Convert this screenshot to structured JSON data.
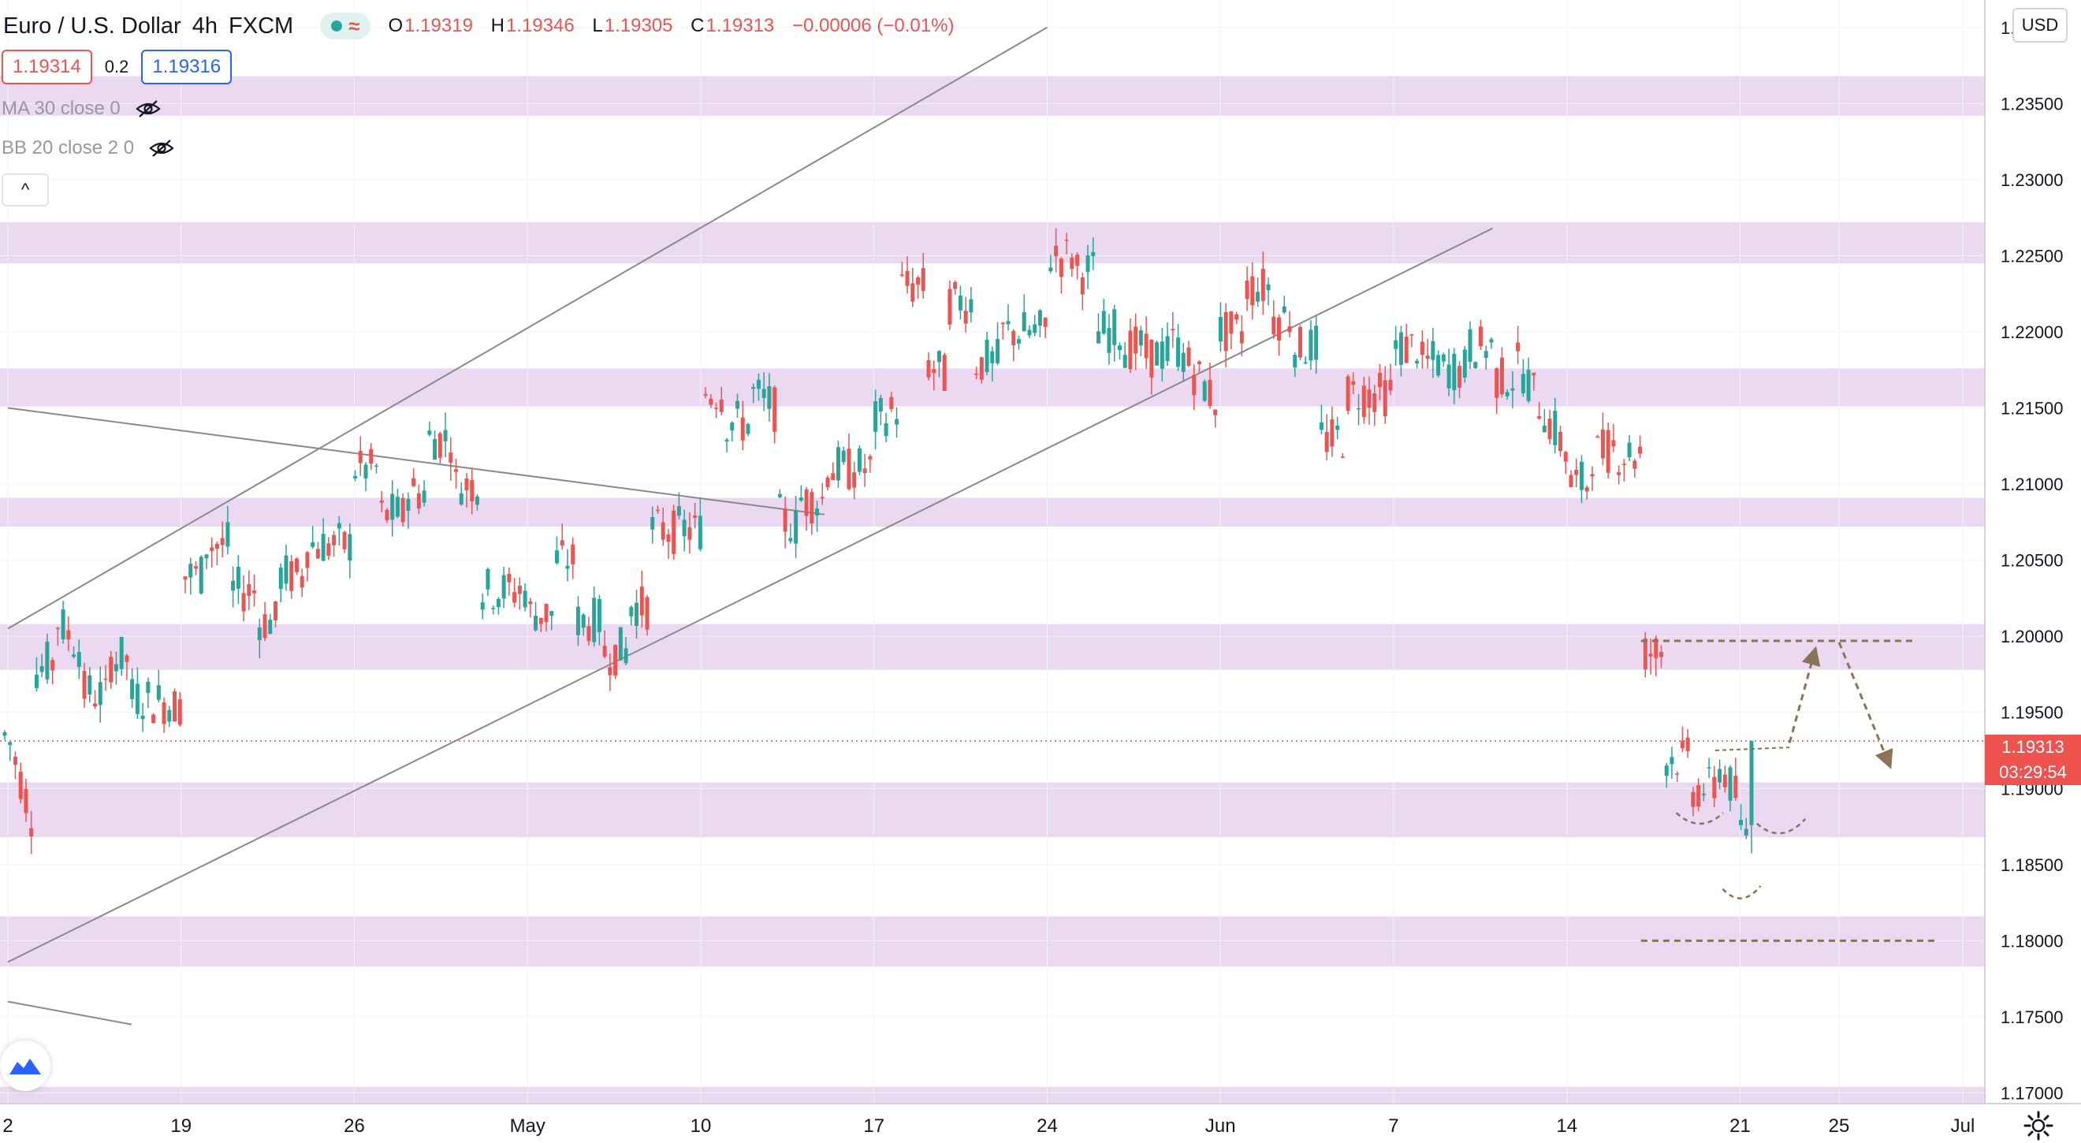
{
  "header": {
    "symbol": "Euro / U.S. Dollar",
    "interval": "4h",
    "exchange": "FXCM",
    "approx_icon": "≈",
    "ohlc": {
      "o_label": "O",
      "o": "1.19319",
      "h_label": "H",
      "h": "1.19346",
      "l_label": "L",
      "l": "1.19305",
      "c_label": "C",
      "c": "1.19313",
      "change": "−0.00006 (−0.01%)"
    }
  },
  "trade": {
    "sell_price": "1.19314",
    "spread": "0.2",
    "buy_price": "1.19316"
  },
  "indicators": [
    {
      "label": "MA 30 close 0",
      "icon": "eye-hidden-icon"
    },
    {
      "label": "BB 20 close 2 0",
      "icon": "eye-hidden-icon"
    }
  ],
  "collapse_icon": "^",
  "currency": "USD",
  "last_price": "1.19313",
  "countdown": "03:29:54",
  "colors": {
    "up": "#26a69a",
    "down": "#ef5350",
    "zone": "#e8d1ee",
    "trendline": "#8a8a8a",
    "annotation": "#8b7355"
  },
  "chart_data": {
    "type": "candlestick",
    "ylim": [
      1.1693,
      1.2418
    ],
    "y_ticks": [
      1.24,
      1.235,
      1.23,
      1.225,
      1.22,
      1.215,
      1.21,
      1.205,
      1.2,
      1.195,
      1.19,
      1.185,
      1.18,
      1.175,
      1.17
    ],
    "y_tick_labels": [
      "1.24000",
      "1.23500",
      "1.23000",
      "1.22500",
      "1.22000",
      "1.21500",
      "1.21000",
      "1.20500",
      "1.20000",
      "1.19500",
      "1.19000",
      "1.18500",
      "1.18000",
      "1.17500",
      "1.17000"
    ],
    "x_labels": [
      {
        "text": "2",
        "date": "2021-04-12"
      },
      {
        "text": "19",
        "date": "2021-04-19"
      },
      {
        "text": "26",
        "date": "2021-04-26"
      },
      {
        "text": "May",
        "date": "2021-05-03"
      },
      {
        "text": "10",
        "date": "2021-05-10"
      },
      {
        "text": "17",
        "date": "2021-05-17"
      },
      {
        "text": "24",
        "date": "2021-05-24"
      },
      {
        "text": "Jun",
        "date": "2021-05-31"
      },
      {
        "text": "7",
        "date": "2021-06-07"
      },
      {
        "text": "14",
        "date": "2021-06-14"
      },
      {
        "text": "21",
        "date": "2021-06-21"
      },
      {
        "text": "25",
        "date": "2021-06-25"
      },
      {
        "text": "Jul",
        "date": "2021-06-30"
      }
    ],
    "zones": [
      [
        1.2342,
        1.2368
      ],
      [
        1.2245,
        1.2272
      ],
      [
        1.2151,
        1.2176
      ],
      [
        1.2072,
        1.2091
      ],
      [
        1.1978,
        1.2008
      ],
      [
        1.1868,
        1.1904
      ],
      [
        1.1783,
        1.1816
      ],
      [
        1.1693,
        1.1704
      ]
    ],
    "trendlines": [
      {
        "from": [
          "2021-04-12",
          1.2005
        ],
        "to": [
          "2021-05-24",
          1.24
        ]
      },
      {
        "from": [
          "2021-04-12",
          1.1786
        ],
        "to": [
          "2021-06-11",
          1.2268
        ]
      },
      {
        "from": [
          "2021-04-12",
          1.215
        ],
        "to": [
          "2021-05-15",
          1.208
        ]
      },
      {
        "from": [
          "2021-04-12",
          1.176
        ],
        "to": [
          "2021-04-17",
          1.1745
        ]
      }
    ],
    "last_price_line": 1.19313,
    "annotations": {
      "resistance_line": {
        "from": [
          "2021-06-17",
          1.1997
        ],
        "to": [
          "2021-06-28",
          1.1997
        ]
      },
      "support_line": {
        "from": [
          "2021-06-17",
          1.18
        ],
        "to": [
          "2021-06-29",
          1.18
        ]
      },
      "neckline": {
        "from": [
          "2021-06-20",
          1.1925
        ],
        "to": [
          "2021-06-23",
          1.1927
        ]
      },
      "path": [
        [
          "2021-06-23",
          1.193
        ],
        [
          "2021-06-24",
          1.1989
        ],
        [
          "2021-06-25",
          1.1996
        ],
        [
          "2021-06-27",
          1.1917
        ]
      ],
      "pattern_arcs": [
        [
          [
            "2021-06-19",
            1.1884
          ],
          [
            "2021-06-19",
            1.1877
          ],
          [
            "2021-06-20",
            1.1884
          ]
        ],
        [
          [
            "2021-06-21",
            1.1834
          ],
          [
            "2021-06-21",
            1.1828
          ],
          [
            "2021-06-21",
            1.1836
          ]
        ],
        [
          [
            "2021-06-22",
            1.1877
          ],
          [
            "2021-06-22",
            1.187
          ],
          [
            "2021-06-23",
            1.188
          ]
        ]
      ]
    },
    "ohlc_points": [
      [
        "2021-04-12",
        1.19,
        1.1935
      ],
      [
        "2021-04-13",
        1.188,
        1.1975
      ],
      [
        "2021-04-14",
        1.1985,
        1.201
      ],
      [
        "2021-04-15",
        1.199,
        1.1965
      ],
      [
        "2021-04-16",
        1.196,
        1.1985
      ],
      [
        "2021-04-17",
        1.1985,
        1.196
      ],
      [
        "2021-04-19",
        1.1955,
        1.204
      ],
      [
        "2021-04-20",
        1.204,
        1.206
      ],
      [
        "2021-04-21",
        1.206,
        1.203
      ],
      [
        "2021-04-22",
        1.203,
        1.201
      ],
      [
        "2021-04-23",
        1.201,
        1.204
      ],
      [
        "2021-04-24",
        1.204,
        1.206
      ],
      [
        "2021-04-26",
        1.206,
        1.211
      ],
      [
        "2021-04-27",
        1.211,
        1.208
      ],
      [
        "2021-04-28",
        1.208,
        1.2095
      ],
      [
        "2021-04-29",
        1.2095,
        1.213
      ],
      [
        "2021-04-30",
        1.213,
        1.21
      ],
      [
        "2021-05-01",
        1.21,
        1.203
      ],
      [
        "2021-05-03",
        1.203,
        1.2015
      ],
      [
        "2021-05-04",
        1.2015,
        1.205
      ],
      [
        "2021-05-05",
        1.205,
        1.201
      ],
      [
        "2021-05-06",
        1.201,
        1.199
      ],
      [
        "2021-05-07",
        1.199,
        1.202
      ],
      [
        "2021-05-08",
        1.202,
        1.207
      ],
      [
        "2021-05-10",
        1.207,
        1.216
      ],
      [
        "2021-05-11",
        1.216,
        1.214
      ],
      [
        "2021-05-12",
        1.214,
        1.216
      ],
      [
        "2021-05-13",
        1.215,
        1.208
      ],
      [
        "2021-05-14",
        1.207,
        1.209
      ],
      [
        "2021-05-15",
        1.209,
        1.211
      ],
      [
        "2021-05-17",
        1.211,
        1.214
      ],
      [
        "2021-05-18",
        1.215,
        1.223
      ],
      [
        "2021-05-19",
        1.223,
        1.218
      ],
      [
        "2021-05-20",
        1.217,
        1.222
      ],
      [
        "2021-05-21",
        1.222,
        1.218
      ],
      [
        "2021-05-22",
        1.218,
        1.22
      ],
      [
        "2021-05-24",
        1.22,
        1.225
      ],
      [
        "2021-05-25",
        1.225,
        1.224
      ],
      [
        "2021-05-26",
        1.224,
        1.22
      ],
      [
        "2021-05-27",
        1.22,
        1.219
      ],
      [
        "2021-05-28",
        1.219,
        1.2185
      ],
      [
        "2021-05-29",
        1.2185,
        1.2195
      ],
      [
        "2021-05-31",
        1.215,
        1.22
      ],
      [
        "2021-06-01",
        1.22,
        1.223
      ],
      [
        "2021-06-02",
        1.223,
        1.221
      ],
      [
        "2021-06-03",
        1.221,
        1.219
      ],
      [
        "2021-06-04",
        1.219,
        1.213
      ],
      [
        "2021-06-05",
        1.213,
        1.216
      ],
      [
        "2021-06-07",
        1.216,
        1.219
      ],
      [
        "2021-06-08",
        1.219,
        1.218
      ],
      [
        "2021-06-09",
        1.218,
        1.2175
      ],
      [
        "2021-06-10",
        1.2175,
        1.219
      ],
      [
        "2021-06-11",
        1.219,
        1.217
      ],
      [
        "2021-06-12",
        1.217,
        1.218
      ],
      [
        "2021-06-14",
        1.212,
        1.21
      ],
      [
        "2021-06-15",
        1.21,
        1.212
      ],
      [
        "2021-06-16",
        1.2125,
        1.212
      ],
      [
        "2021-06-17",
        1.212,
        1.199
      ],
      [
        "2021-06-18",
        1.199,
        1.192
      ],
      [
        "2021-06-19",
        1.192,
        1.19
      ],
      [
        "2021-06-20",
        1.19,
        1.192
      ],
      [
        "2021-06-21",
        1.189,
        1.187
      ],
      [
        "2021-06-22",
        1.188,
        1.191
      ],
      [
        "2021-06-23",
        1.19,
        1.1931
      ]
    ]
  }
}
